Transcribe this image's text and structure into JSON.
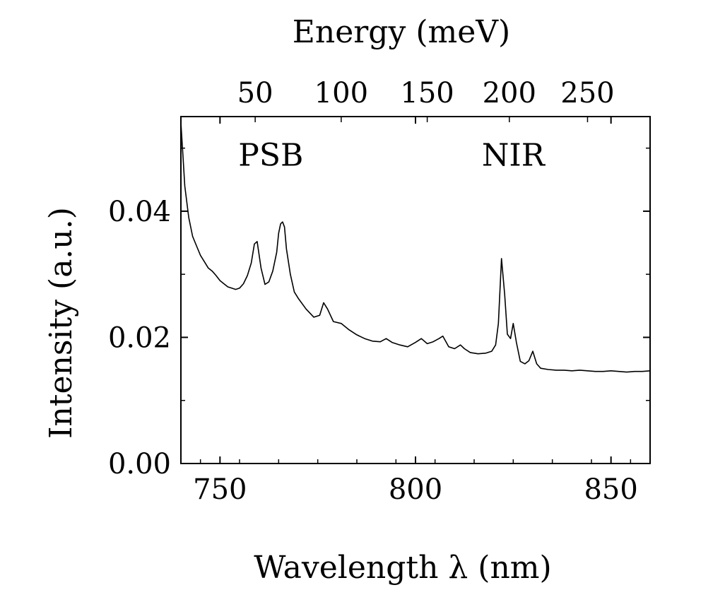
{
  "chart_data": {
    "type": "line",
    "xlabel": "Wavelength λ (nm)",
    "ylabel": "Intensity (a.u.)",
    "top_xlabel": "Energy (meV)",
    "xlim": [
      740,
      860
    ],
    "ylim": [
      0,
      0.055
    ],
    "x_ticks": [
      750,
      800,
      850
    ],
    "x_tick_labels": [
      "750",
      "800",
      "850"
    ],
    "y_ticks": [
      0.0,
      0.02,
      0.04
    ],
    "y_tick_labels": [
      "0.00",
      "0.02",
      "0.04"
    ],
    "top_ticks_wavelength": [
      759,
      781,
      803,
      824,
      844
    ],
    "top_tick_labels": [
      "50",
      "100",
      "150",
      "200",
      "250"
    ],
    "annotations": [
      {
        "text": "PSB",
        "x": 763,
        "y": 0.049
      },
      {
        "text": "NIR",
        "x": 825,
        "y": 0.049
      }
    ],
    "grid": false,
    "series": [
      {
        "x": [
          740,
          740.5,
          741,
          742,
          743,
          744,
          745,
          746,
          747,
          748,
          749,
          750,
          751,
          752,
          753,
          754,
          755,
          756,
          757,
          758,
          758.8,
          759.5,
          760.5,
          761.5,
          762.5,
          763.5,
          764.5,
          765,
          765.5,
          766,
          766.5,
          767,
          768,
          769,
          770,
          772,
          774,
          775.5,
          776.5,
          777.5,
          779,
          781,
          783,
          785,
          787,
          789,
          791,
          792.5,
          794,
          796,
          798,
          800,
          801.5,
          803,
          804.5,
          806,
          807,
          808.5,
          810,
          811.5,
          812.5,
          814,
          816,
          818,
          819.5,
          820.5,
          821.2,
          822,
          822.8,
          823.5,
          824.3,
          825,
          825.8,
          826.8,
          828,
          829,
          830,
          831,
          832,
          834,
          836,
          838,
          840,
          842,
          844,
          846,
          848,
          850,
          852,
          854,
          856,
          858,
          860
        ],
        "y": [
          0.054,
          0.049,
          0.044,
          0.039,
          0.036,
          0.0345,
          0.033,
          0.032,
          0.031,
          0.0305,
          0.0298,
          0.029,
          0.0285,
          0.028,
          0.0278,
          0.0276,
          0.0278,
          0.0285,
          0.0298,
          0.0318,
          0.0348,
          0.0352,
          0.031,
          0.0284,
          0.0288,
          0.0305,
          0.0335,
          0.0365,
          0.038,
          0.0383,
          0.0375,
          0.034,
          0.03,
          0.0272,
          0.0262,
          0.0245,
          0.0232,
          0.0235,
          0.0255,
          0.0245,
          0.0225,
          0.0222,
          0.0212,
          0.0204,
          0.0198,
          0.0194,
          0.0193,
          0.0198,
          0.0192,
          0.0188,
          0.0185,
          0.0192,
          0.0198,
          0.019,
          0.0193,
          0.0198,
          0.0202,
          0.0185,
          0.0182,
          0.0188,
          0.0182,
          0.0176,
          0.0174,
          0.0175,
          0.0178,
          0.0188,
          0.0222,
          0.0325,
          0.0268,
          0.0205,
          0.0198,
          0.0222,
          0.0192,
          0.0162,
          0.0158,
          0.0163,
          0.0178,
          0.0158,
          0.0151,
          0.0149,
          0.0148,
          0.0148,
          0.0147,
          0.0148,
          0.0147,
          0.0146,
          0.0146,
          0.0147,
          0.0146,
          0.0145,
          0.0146,
          0.0146,
          0.0147
        ]
      }
    ]
  }
}
